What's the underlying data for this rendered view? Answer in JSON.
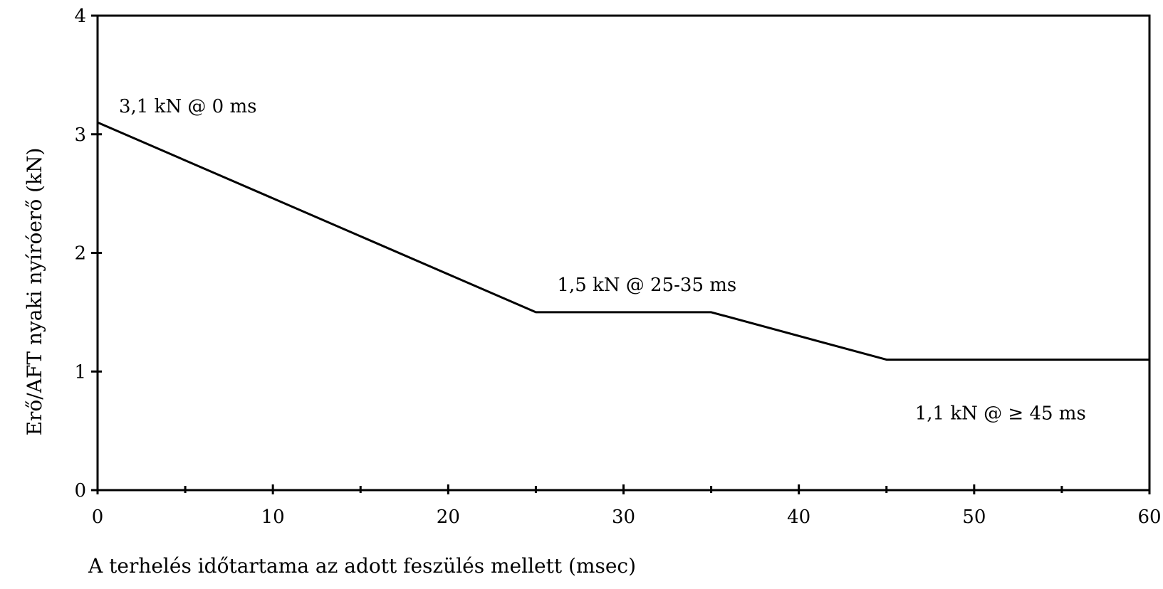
{
  "chart_data": {
    "type": "line",
    "title": "",
    "xlabel": "A terhelés időtartama az adott feszülés mellett (msec)",
    "ylabel": "Erő/AFT nyaki nyíróerő (kN)",
    "xlim": [
      0,
      60
    ],
    "ylim": [
      0,
      4
    ],
    "x_ticks": [
      0,
      10,
      20,
      30,
      40,
      50,
      60
    ],
    "x_tick_labels": [
      "0",
      "10",
      "20",
      "30",
      "40",
      "50",
      "60"
    ],
    "x_minor_ticks": [
      5,
      15,
      25,
      35,
      45,
      55
    ],
    "y_ticks": [
      0,
      1,
      2,
      3,
      4
    ],
    "y_tick_labels": [
      "0",
      "1",
      "2",
      "3",
      "4"
    ],
    "grid": false,
    "legend": "none",
    "series": [
      {
        "x": [
          0,
          25,
          35,
          45,
          60
        ],
        "y": [
          3.1,
          1.5,
          1.5,
          1.1,
          1.1
        ],
        "color": "#000000"
      }
    ],
    "annotations": [
      {
        "text": "3,1 kN @ 0 ms",
        "x": 0,
        "y": 3.1
      },
      {
        "text": "1,5 kN @ 25-35 ms",
        "x": 25,
        "y": 1.5
      },
      {
        "text": "1,1 kN @ ≥ 45 ms",
        "x": 45,
        "y": 1.1
      }
    ]
  }
}
